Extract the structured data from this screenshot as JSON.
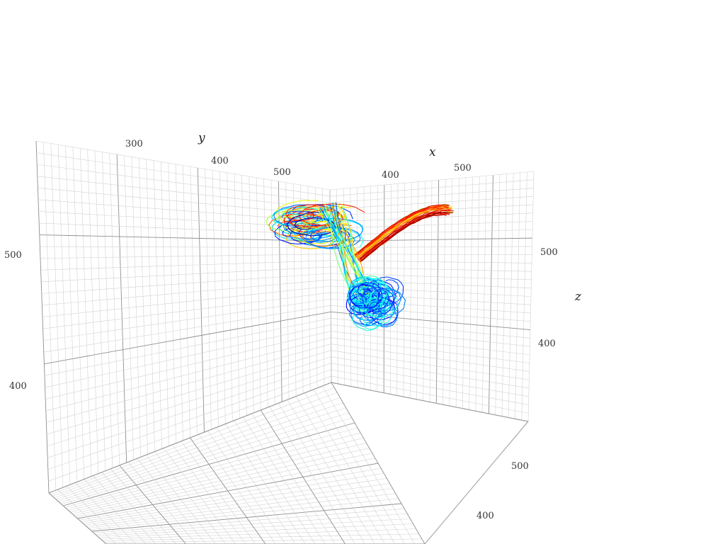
{
  "chart_data": {
    "type": "3d-line",
    "title": "",
    "axes": {
      "x": {
        "label": "x",
        "ticks": [
          "400",
          "500"
        ]
      },
      "y": {
        "label": "y",
        "ticks": [
          "300",
          "400",
          "500"
        ]
      },
      "z": {
        "label": "z",
        "ticks": [
          "400",
          "500"
        ]
      },
      "depth_left_ticks": [
        "500",
        "400"
      ],
      "depth_bottom_ticks": [
        "500",
        "400"
      ]
    },
    "grid": true,
    "colormap": "jet",
    "colors": [
      "#00008f",
      "#0030ff",
      "#00b4ff",
      "#60ffc8",
      "#c8ff40",
      "#ffd000",
      "#ff5000",
      "#c00000"
    ],
    "series": [
      {
        "group": "arch",
        "count": 26,
        "color_range": [
          0.55,
          1.0
        ]
      },
      {
        "group": "left-cluster",
        "count": 28,
        "color_range": [
          0.05,
          0.9
        ]
      },
      {
        "group": "stem",
        "count": 22,
        "color_range": [
          0.2,
          0.75
        ]
      },
      {
        "group": "bottom-tangle",
        "count": 30,
        "color_range": [
          0.1,
          0.45
        ]
      }
    ]
  }
}
